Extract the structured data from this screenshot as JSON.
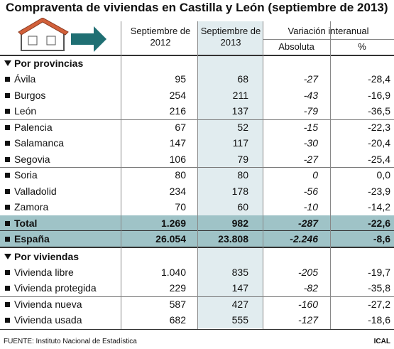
{
  "title": "Compraventa de viviendas en Castilla y León (septiembre de 2013)",
  "source": "FUENTE: Instituto Nacional de Estadística",
  "credit": "ICAL",
  "table": {
    "headers": [
      "Septiembre de 2012",
      "Septiembre de 2013",
      "Variación interanual"
    ],
    "subheaders": [
      "Absoluta",
      "%"
    ],
    "sections": [
      {
        "title": "Por provincias",
        "rows": [
          [
            "Ávila",
            "95",
            "68",
            "-27",
            "-28,4"
          ],
          [
            "Burgos",
            "254",
            "211",
            "-43",
            "-16,9"
          ],
          [
            "León",
            "216",
            "137",
            "-79",
            "-36,5"
          ],
          [
            "Palencia",
            "67",
            "52",
            "-15",
            "-22,3"
          ],
          [
            "Salamanca",
            "147",
            "117",
            "-30",
            "-20,4"
          ],
          [
            "Segovia",
            "106",
            "79",
            "-27",
            "-25,4"
          ],
          [
            "Soria",
            "80",
            "80",
            "0",
            "0,0"
          ],
          [
            "Valladolid",
            "234",
            "178",
            "-56",
            "-23,9"
          ],
          [
            "Zamora",
            "70",
            "60",
            "-10",
            "-14,2"
          ]
        ],
        "totals": [
          [
            "Total",
            "1.269",
            "982",
            "-287",
            "-22,6"
          ],
          [
            "España",
            "26.054",
            "23.808",
            "-2.246",
            "-8,6"
          ]
        ]
      },
      {
        "title": "Por viviendas",
        "rows": [
          [
            "Vivienda libre",
            "1.040",
            "835",
            "-205",
            "-19,7"
          ],
          [
            "Vivienda protegida",
            "229",
            "147",
            "-82",
            "-35,8"
          ],
          [
            "Vivienda nueva",
            "587",
            "427",
            "-160",
            "-27,2"
          ],
          [
            "Vivienda usada",
            "682",
            "555",
            "-127",
            "-18,6"
          ]
        ],
        "totals": []
      }
    ]
  }
}
